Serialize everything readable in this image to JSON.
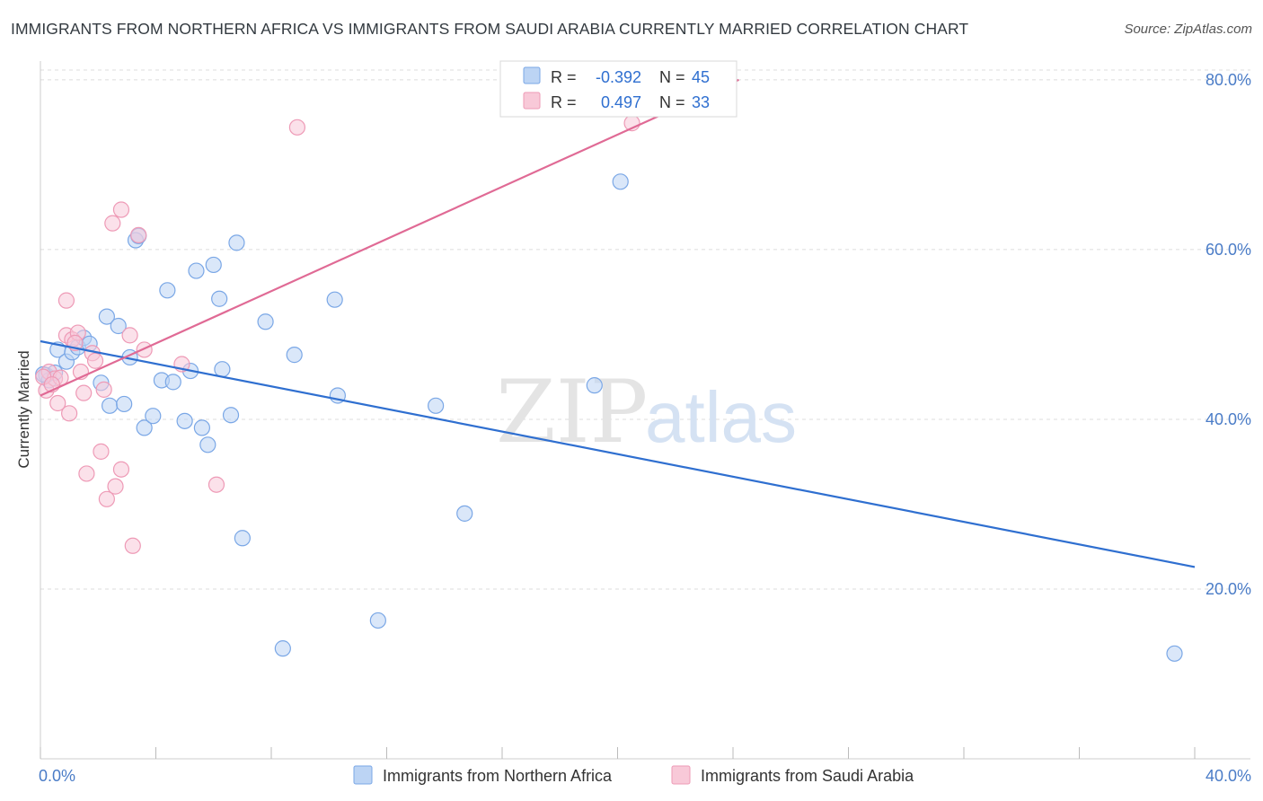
{
  "header": {
    "title": "IMMIGRANTS FROM NORTHERN AFRICA VS IMMIGRANTS FROM SAUDI ARABIA CURRENTLY MARRIED CORRELATION CHART",
    "source": "Source: ZipAtlas.com"
  },
  "watermark": {
    "zip": "ZIP",
    "atlas": "atlas"
  },
  "stats": [
    {
      "r_label": "R =",
      "r_value": "-0.392",
      "n_label": "N =",
      "n_value": "45"
    },
    {
      "r_label": "R =",
      "r_value": "0.497",
      "n_label": "N =",
      "n_value": "33"
    }
  ],
  "chart_data": {
    "type": "scatter",
    "title": "IMMIGRANTS FROM NORTHERN AFRICA VS IMMIGRANTS FROM SAUDI ARABIA CURRENTLY MARRIED CORRELATION CHART",
    "xlabel": "",
    "ylabel": "Currently Married",
    "xlim": [
      0,
      40
    ],
    "ylim": [
      0,
      82
    ],
    "x_tick_labels": [
      "0.0%",
      "40.0%"
    ],
    "y_ticks": [
      20,
      40,
      60,
      80
    ],
    "y_tick_labels": [
      "20.0%",
      "40.0%",
      "60.0%",
      "80.0%"
    ],
    "grid": true,
    "legend_position": "bottom",
    "series": [
      {
        "name": "Immigrants from Northern Africa",
        "color": "#7aa7e6",
        "fill": "#bcd4f4",
        "trend_color": "#2f6fd0",
        "trend": {
          "x": [
            0.0,
            40.0
          ],
          "y": [
            49.2,
            22.6
          ]
        },
        "points": [
          [
            0.2,
            45.2
          ],
          [
            0.3,
            44.6
          ],
          [
            0.5,
            45.5
          ],
          [
            0.6,
            48.2
          ],
          [
            0.9,
            46.8
          ],
          [
            1.1,
            47.9
          ],
          [
            1.3,
            48.5
          ],
          [
            1.5,
            49.6
          ],
          [
            1.7,
            48.9
          ],
          [
            2.1,
            44.3
          ],
          [
            2.3,
            52.1
          ],
          [
            2.4,
            41.6
          ],
          [
            2.7,
            51.0
          ],
          [
            2.9,
            41.8
          ],
          [
            3.1,
            47.3
          ],
          [
            3.3,
            61.1
          ],
          [
            3.4,
            61.6
          ],
          [
            3.6,
            39.0
          ],
          [
            3.9,
            40.4
          ],
          [
            4.2,
            44.6
          ],
          [
            4.4,
            55.2
          ],
          [
            4.6,
            44.4
          ],
          [
            5.0,
            39.8
          ],
          [
            5.2,
            45.7
          ],
          [
            5.4,
            57.5
          ],
          [
            5.6,
            39.0
          ],
          [
            5.8,
            37.0
          ],
          [
            6.0,
            58.2
          ],
          [
            6.2,
            54.2
          ],
          [
            6.3,
            45.9
          ],
          [
            6.6,
            40.5
          ],
          [
            6.8,
            60.8
          ],
          [
            7.0,
            26.0
          ],
          [
            7.8,
            51.5
          ],
          [
            8.4,
            13.0
          ],
          [
            8.8,
            47.6
          ],
          [
            10.2,
            54.1
          ],
          [
            10.3,
            42.8
          ],
          [
            11.7,
            16.3
          ],
          [
            13.7,
            41.6
          ],
          [
            14.7,
            28.9
          ],
          [
            19.2,
            44.0
          ],
          [
            20.1,
            68.0
          ],
          [
            39.3,
            12.4
          ],
          [
            0.1,
            45.3
          ]
        ]
      },
      {
        "name": "Immigrants from Saudi Arabia",
        "color": "#ee9ab6",
        "fill": "#f8c9d8",
        "trend_color": "#e06a95",
        "trend": {
          "x": [
            0.0,
            24.2
          ],
          "y": [
            42.8,
            80.0
          ]
        },
        "points": [
          [
            0.2,
            43.4
          ],
          [
            0.3,
            45.6
          ],
          [
            0.5,
            44.8
          ],
          [
            0.6,
            41.9
          ],
          [
            0.7,
            44.9
          ],
          [
            0.9,
            54.0
          ],
          [
            0.9,
            49.9
          ],
          [
            1.0,
            40.7
          ],
          [
            1.1,
            49.4
          ],
          [
            1.3,
            50.2
          ],
          [
            1.4,
            45.6
          ],
          [
            1.5,
            43.1
          ],
          [
            1.6,
            33.6
          ],
          [
            1.8,
            47.8
          ],
          [
            1.9,
            46.9
          ],
          [
            2.1,
            36.2
          ],
          [
            2.2,
            43.5
          ],
          [
            2.3,
            30.6
          ],
          [
            2.5,
            63.1
          ],
          [
            2.6,
            32.1
          ],
          [
            2.8,
            64.7
          ],
          [
            2.8,
            34.1
          ],
          [
            3.1,
            49.9
          ],
          [
            3.2,
            25.1
          ],
          [
            3.4,
            61.7
          ],
          [
            3.6,
            48.2
          ],
          [
            4.9,
            46.5
          ],
          [
            6.1,
            32.3
          ],
          [
            8.9,
            74.4
          ],
          [
            20.5,
            74.9
          ],
          [
            0.1,
            45.0
          ],
          [
            1.2,
            49.0
          ],
          [
            0.4,
            44.1
          ]
        ]
      }
    ]
  },
  "legend": {
    "items": [
      "Immigrants from Northern Africa",
      "Immigrants from Saudi Arabia"
    ]
  }
}
